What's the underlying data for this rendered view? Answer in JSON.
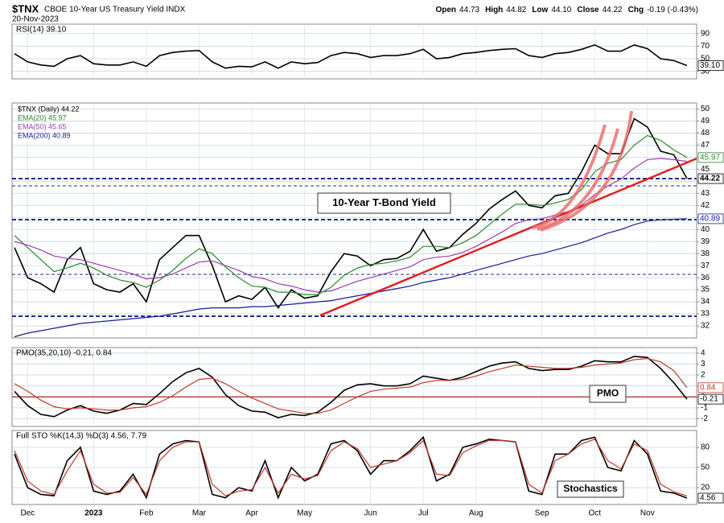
{
  "header": {
    "symbol": "$TNX",
    "name": "CBOE 10-Year US Treasury Yield INDX",
    "date": "20-Nov-2023",
    "quote": [
      {
        "label": "Open",
        "value": "44.73"
      },
      {
        "label": "High",
        "value": "44.82"
      },
      {
        "label": "Low",
        "value": "44.10"
      },
      {
        "label": "Close",
        "value": "44.22"
      },
      {
        "label": "Chg",
        "value": "-0.19 (-0.43%)"
      }
    ]
  },
  "chart_data": [
    {
      "type": "line",
      "legend": "RSI(14) 39.10",
      "ylim": [
        18,
        105
      ],
      "yticks": [
        30,
        50,
        70,
        90
      ],
      "series": [
        {
          "color": "#000000",
          "last_label": "39.10",
          "values": [
            58,
            45,
            40,
            38,
            50,
            55,
            42,
            40,
            40,
            45,
            38,
            55,
            60,
            62,
            63,
            45,
            35,
            38,
            37,
            45,
            35,
            45,
            42,
            44,
            55,
            60,
            58,
            52,
            55,
            55,
            58,
            65,
            50,
            52,
            58,
            60,
            63,
            65,
            66,
            55,
            52,
            58,
            60,
            65,
            72,
            62,
            62,
            72,
            66,
            50,
            47,
            39.1
          ]
        }
      ]
    },
    {
      "type": "line",
      "annotation": "10-Year T-Bond Yield",
      "ylim": [
        31,
        50.5
      ],
      "yticks": [
        32,
        33,
        34,
        35,
        36,
        37,
        38,
        39,
        40,
        41,
        42,
        43,
        44,
        45,
        46,
        47,
        48,
        49,
        50
      ],
      "series": [
        {
          "name": "$TNX (Daily) 44.22",
          "color": "#000000",
          "last_label": "44.22",
          "values": [
            38.5,
            36.0,
            35.5,
            34.8,
            37.5,
            38.5,
            35.5,
            35.0,
            34.8,
            35.5,
            34.0,
            37.5,
            38.5,
            39.5,
            39.5,
            37.0,
            34.0,
            34.5,
            34.2,
            35.2,
            33.5,
            35.0,
            34.3,
            34.5,
            36.5,
            38.0,
            37.8,
            37.0,
            37.5,
            37.6,
            38.2,
            40.0,
            38.2,
            38.5,
            39.6,
            40.5,
            41.7,
            42.5,
            43.2,
            42.0,
            41.8,
            42.8,
            43.0,
            44.8,
            47.0,
            46.3,
            46.3,
            49.2,
            48.5,
            46.5,
            46.2,
            44.22
          ]
        },
        {
          "name": "EMA(20) 45.97",
          "color": "#2a8a2a",
          "last_label": "45.97",
          "values": [
            39.5,
            38.5,
            37.5,
            36.5,
            36.8,
            37.2,
            36.8,
            36.2,
            35.8,
            35.6,
            35.2,
            35.8,
            36.6,
            37.6,
            38.4,
            38.0,
            36.9,
            36.0,
            35.3,
            35.2,
            34.8,
            34.8,
            34.6,
            34.6,
            35.2,
            36.2,
            36.8,
            37.1,
            37.2,
            37.4,
            37.7,
            38.6,
            38.6,
            38.5,
            38.9,
            39.5,
            40.4,
            41.3,
            42.1,
            42.1,
            42.0,
            42.2,
            42.5,
            43.3,
            44.8,
            45.5,
            45.8,
            47.0,
            47.8,
            47.4,
            46.6,
            45.97
          ]
        },
        {
          "name": "EMA(50) 45.65",
          "color": "#9b3fae",
          "values": [
            39.0,
            38.7,
            38.3,
            37.8,
            37.6,
            37.5,
            37.2,
            36.9,
            36.6,
            36.3,
            35.9,
            36.0,
            36.3,
            36.8,
            37.3,
            37.4,
            37.0,
            36.6,
            36.1,
            35.9,
            35.5,
            35.3,
            35.0,
            34.8,
            34.9,
            35.3,
            35.7,
            36.0,
            36.3,
            36.6,
            36.9,
            37.5,
            37.7,
            37.8,
            38.1,
            38.6,
            39.2,
            39.8,
            40.5,
            40.8,
            40.9,
            41.2,
            41.5,
            42.0,
            42.9,
            43.6,
            44.2,
            45.1,
            45.8,
            45.9,
            45.8,
            45.65
          ]
        },
        {
          "name": "EMA(200) 40.89",
          "color": "#1c1c8c",
          "last_label": "40.89",
          "values": [
            31.1,
            31.4,
            31.6,
            31.8,
            32.0,
            32.2,
            32.3,
            32.4,
            32.5,
            32.6,
            32.7,
            32.8,
            33.0,
            33.2,
            33.4,
            33.5,
            33.5,
            33.5,
            33.6,
            33.6,
            33.7,
            33.8,
            33.9,
            34.0,
            34.1,
            34.3,
            34.5,
            34.7,
            34.9,
            35.1,
            35.3,
            35.6,
            35.8,
            36.0,
            36.3,
            36.6,
            36.9,
            37.2,
            37.5,
            37.8,
            38.0,
            38.3,
            38.6,
            38.9,
            39.3,
            39.7,
            40.0,
            40.4,
            40.7,
            40.8,
            40.85,
            40.89
          ]
        }
      ]
    },
    {
      "type": "line",
      "legend": "PMO(35,20,10) -0.21, 0.84",
      "annotation": "PMO",
      "ylim": [
        -2.7,
        4.5
      ],
      "yticks": [
        -2,
        -1,
        0,
        1,
        2,
        3,
        4
      ],
      "series": [
        {
          "color": "#000000",
          "last_label": "-0.21",
          "values": [
            0.5,
            -0.8,
            -1.6,
            -1.8,
            -1.2,
            -0.8,
            -1.3,
            -1.5,
            -1.2,
            -0.6,
            -0.7,
            0.3,
            1.4,
            2.2,
            2.6,
            1.8,
            0.2,
            -0.8,
            -1.3,
            -1.4,
            -1.9,
            -1.6,
            -1.7,
            -1.4,
            -0.5,
            0.6,
            1.1,
            1.2,
            1.0,
            1.0,
            1.2,
            1.9,
            1.7,
            1.5,
            1.8,
            2.3,
            2.8,
            3.1,
            3.2,
            2.6,
            2.4,
            2.5,
            2.5,
            2.8,
            3.3,
            3.2,
            3.2,
            3.7,
            3.6,
            2.6,
            1.3,
            -0.21
          ]
        },
        {
          "color": "#c0392b",
          "last_label": "0.84",
          "values": [
            1.2,
            0.5,
            -0.3,
            -0.9,
            -1.1,
            -1.0,
            -1.1,
            -1.2,
            -1.2,
            -1.0,
            -0.9,
            -0.5,
            0.1,
            0.9,
            1.6,
            1.7,
            1.2,
            0.5,
            -0.1,
            -0.6,
            -1.1,
            -1.3,
            -1.5,
            -1.5,
            -1.2,
            -0.6,
            0.0,
            0.5,
            0.7,
            0.8,
            0.9,
            1.3,
            1.5,
            1.5,
            1.6,
            1.9,
            2.3,
            2.6,
            2.9,
            2.8,
            2.7,
            2.6,
            2.6,
            2.7,
            2.9,
            3.0,
            3.1,
            3.4,
            3.5,
            3.2,
            2.4,
            0.84
          ]
        }
      ]
    },
    {
      "type": "line",
      "legend": "Full STO %K(14,3) %D(3) 4.56, 7.79",
      "annotation": "Stochastics",
      "ylim": [
        -5,
        105
      ],
      "yticks": [
        20,
        50,
        80
      ],
      "categories": [
        null,
        "Dec",
        null,
        null,
        null,
        null,
        "2023",
        null,
        null,
        null,
        "Feb",
        null,
        null,
        null,
        "Mar",
        null,
        null,
        null,
        "Apr",
        null,
        null,
        null,
        "May",
        null,
        null,
        null,
        null,
        "Jun",
        null,
        null,
        null,
        "Jul",
        null,
        null,
        null,
        "Aug",
        null,
        null,
        null,
        null,
        "Sep",
        null,
        null,
        null,
        "Oct",
        null,
        null,
        null,
        "Nov",
        null,
        null,
        null
      ],
      "series": [
        {
          "color": "#000000",
          "last_label": "4.56",
          "values": [
            70,
            20,
            10,
            8,
            60,
            80,
            15,
            10,
            15,
            40,
            5,
            70,
            85,
            90,
            88,
            10,
            5,
            20,
            15,
            60,
            5,
            50,
            30,
            40,
            85,
            90,
            75,
            40,
            60,
            60,
            75,
            95,
            30,
            40,
            80,
            85,
            92,
            90,
            88,
            15,
            10,
            70,
            70,
            90,
            95,
            50,
            45,
            90,
            70,
            15,
            12,
            4.56
          ]
        },
        {
          "color": "#c0392b",
          "values": [
            75,
            30,
            15,
            10,
            45,
            75,
            25,
            12,
            13,
            35,
            10,
            60,
            80,
            88,
            88,
            25,
            8,
            15,
            17,
            50,
            12,
            40,
            33,
            38,
            75,
            88,
            78,
            50,
            55,
            60,
            72,
            90,
            40,
            38,
            72,
            82,
            90,
            90,
            88,
            25,
            12,
            60,
            70,
            85,
            92,
            60,
            48,
            85,
            75,
            25,
            14,
            7.79
          ]
        }
      ]
    }
  ]
}
